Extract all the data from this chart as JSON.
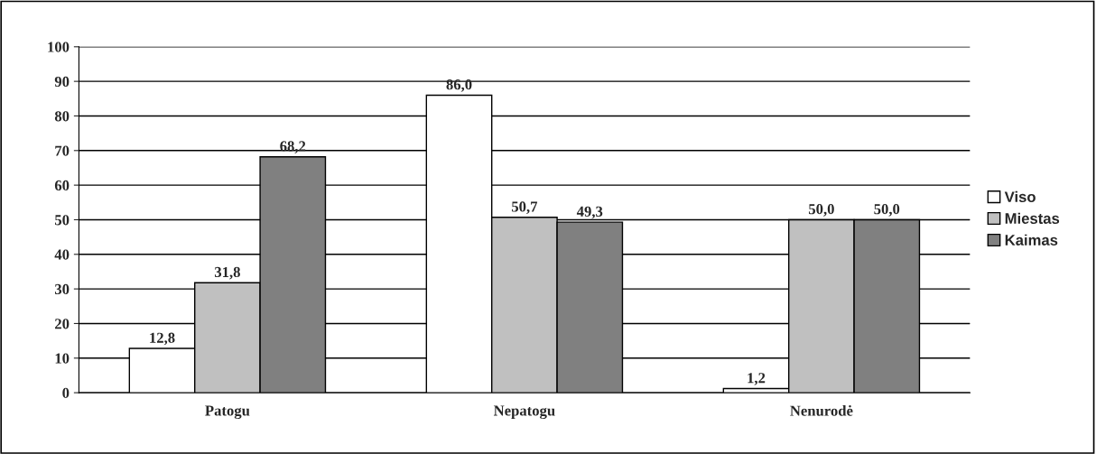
{
  "chart_data": {
    "type": "bar",
    "categories": [
      "Patogu",
      "Nepatogu",
      "Nenurodė"
    ],
    "series": [
      {
        "name": "Viso",
        "color": "#ffffff",
        "values": [
          12.8,
          86.0,
          1.2
        ],
        "value_labels": [
          "12,8",
          "86,0",
          "1,2"
        ]
      },
      {
        "name": "Miestas",
        "color": "#c0c0c0",
        "values": [
          31.8,
          50.7,
          50.0
        ],
        "value_labels": [
          "31,8",
          "50,7",
          "50,0"
        ]
      },
      {
        "name": "Kaimas",
        "color": "#808080",
        "values": [
          68.2,
          49.3,
          50.0
        ],
        "value_labels": [
          "68,2",
          "49,3",
          "50,0"
        ]
      }
    ],
    "ylim": [
      0,
      100
    ],
    "yticks": [
      0,
      10,
      20,
      30,
      40,
      50,
      60,
      70,
      80,
      90,
      100
    ],
    "grid": "y",
    "legend": "right"
  }
}
